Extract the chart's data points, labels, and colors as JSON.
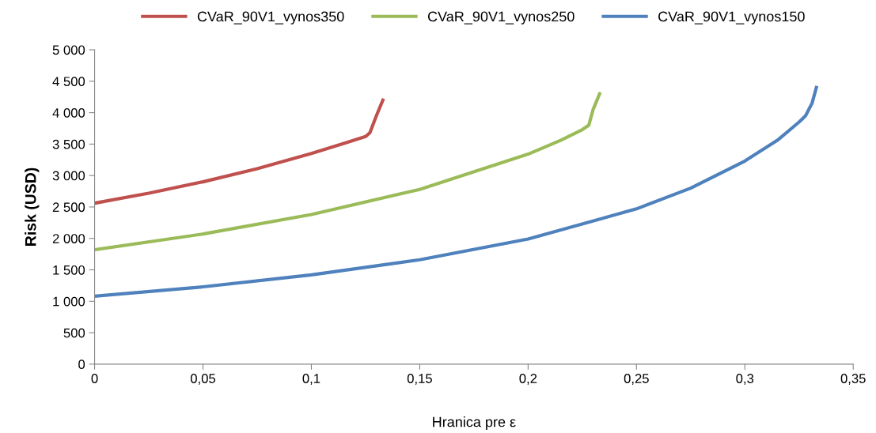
{
  "chart_data": {
    "type": "line",
    "xlabel": "Hranica pre ε",
    "ylabel": "Risk (USD)",
    "legend": "top",
    "grid": false,
    "marker": "none",
    "line_style": "solid",
    "xlim": [
      0,
      0.35
    ],
    "ylim": [
      0,
      5000
    ],
    "xticks": [
      0,
      {
        "value": 0.05,
        "label": "0,05"
      },
      {
        "value": 0.1,
        "label": "0,1"
      },
      {
        "value": 0.15,
        "label": "0,15"
      },
      {
        "value": 0.2,
        "label": "0,2"
      },
      {
        "value": 0.25,
        "label": "0,25"
      },
      {
        "value": 0.3,
        "label": "0,3"
      },
      {
        "value": 0.35,
        "label": "0,35"
      }
    ],
    "yticks": [
      0,
      500,
      {
        "value": 1000,
        "label": "1 000"
      },
      {
        "value": 1500,
        "label": "1 500"
      },
      {
        "value": 2000,
        "label": "2 000"
      },
      {
        "value": 2500,
        "label": "2 500"
      },
      {
        "value": 3000,
        "label": "3 000"
      },
      {
        "value": 3500,
        "label": "3 500"
      },
      {
        "value": 4000,
        "label": "4 000"
      },
      {
        "value": 4500,
        "label": "4 500"
      },
      {
        "value": 5000,
        "label": "5 000"
      }
    ],
    "series": [
      {
        "name": "CVaR_90V1_vynos350",
        "color": "#c0504d",
        "x": [
          0,
          0.025,
          0.05,
          0.075,
          0.1,
          0.115,
          0.125,
          0.127,
          0.13,
          0.133
        ],
        "values": [
          2560,
          2720,
          2900,
          3110,
          3350,
          3510,
          3620,
          3680,
          3950,
          4200
        ]
      },
      {
        "name": "CVaR_90V1_vynos250",
        "color": "#9bbb59",
        "x": [
          0,
          0.05,
          0.1,
          0.15,
          0.2,
          0.215,
          0.225,
          0.228,
          0.23,
          0.233
        ],
        "values": [
          1820,
          2070,
          2380,
          2780,
          3340,
          3560,
          3730,
          3800,
          4050,
          4300
        ]
      },
      {
        "name": "CVaR_90V1_vynos150",
        "color": "#4f81bd",
        "x": [
          0,
          0.05,
          0.1,
          0.15,
          0.2,
          0.25,
          0.275,
          0.3,
          0.315,
          0.325,
          0.328,
          0.331,
          0.333
        ],
        "values": [
          1080,
          1230,
          1420,
          1660,
          1990,
          2470,
          2800,
          3230,
          3560,
          3850,
          3950,
          4150,
          4400
        ]
      }
    ]
  }
}
